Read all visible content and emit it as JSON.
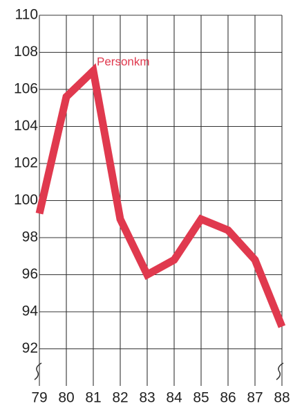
{
  "chart_data": {
    "type": "line",
    "annotation": "Personkm",
    "categories": [
      "79",
      "80",
      "81",
      "82",
      "83",
      "84",
      "85",
      "86",
      "87",
      "88"
    ],
    "series": [
      {
        "name": "Personkm",
        "color": "#e0394e",
        "values": [
          99.3,
          105.6,
          107,
          99,
          96,
          96.8,
          99,
          98.4,
          96.8,
          93.2
        ]
      }
    ],
    "ylim": [
      90,
      110
    ],
    "yticks": [
      92,
      94,
      96,
      98,
      100,
      102,
      104,
      106,
      108,
      110
    ],
    "grid": true
  }
}
